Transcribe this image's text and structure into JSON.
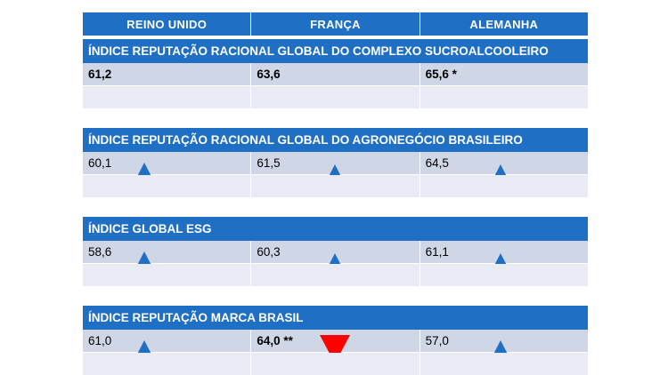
{
  "columns": [
    "REINO UNIDO",
    "FRANÇA",
    "ALEMANHA"
  ],
  "sections": [
    {
      "title": "ÍNDICE REPUTAÇÃO RACIONAL GLOBAL DO COMPLEXO SUCROALCOOLEIRO",
      "values": [
        "61,2",
        "63,6",
        "65,6 *"
      ],
      "bold": true,
      "trends": [
        "none",
        "none",
        "none"
      ]
    },
    {
      "title": "ÍNDICE REPUTAÇÃO RACIONAL GLOBAL DO AGRONEGÓCIO BRASILEIRO",
      "values": [
        "60,1",
        "61,5",
        "64,5"
      ],
      "bold": false,
      "trends": [
        "up",
        "up",
        "up"
      ]
    },
    {
      "title": "ÍNDICE GLOBAL ESG",
      "values": [
        "58,6",
        "60,3",
        "61,1"
      ],
      "bold": false,
      "trends": [
        "up",
        "up",
        "up"
      ]
    },
    {
      "title": "ÍNDICE REPUTAÇÃO MARCA BRASIL",
      "values": [
        "61,0",
        "64,0 **",
        "57,0"
      ],
      "bold": false,
      "bold_cells": [
        false,
        true,
        false
      ],
      "trends": [
        "up",
        "down",
        "up"
      ]
    }
  ],
  "colors": {
    "header_blue": "#1f6fc5",
    "row_dark": "#cfd6e6",
    "row_light": "#e8ebf3",
    "up": "#1f6fc5",
    "down": "#ff0000"
  }
}
